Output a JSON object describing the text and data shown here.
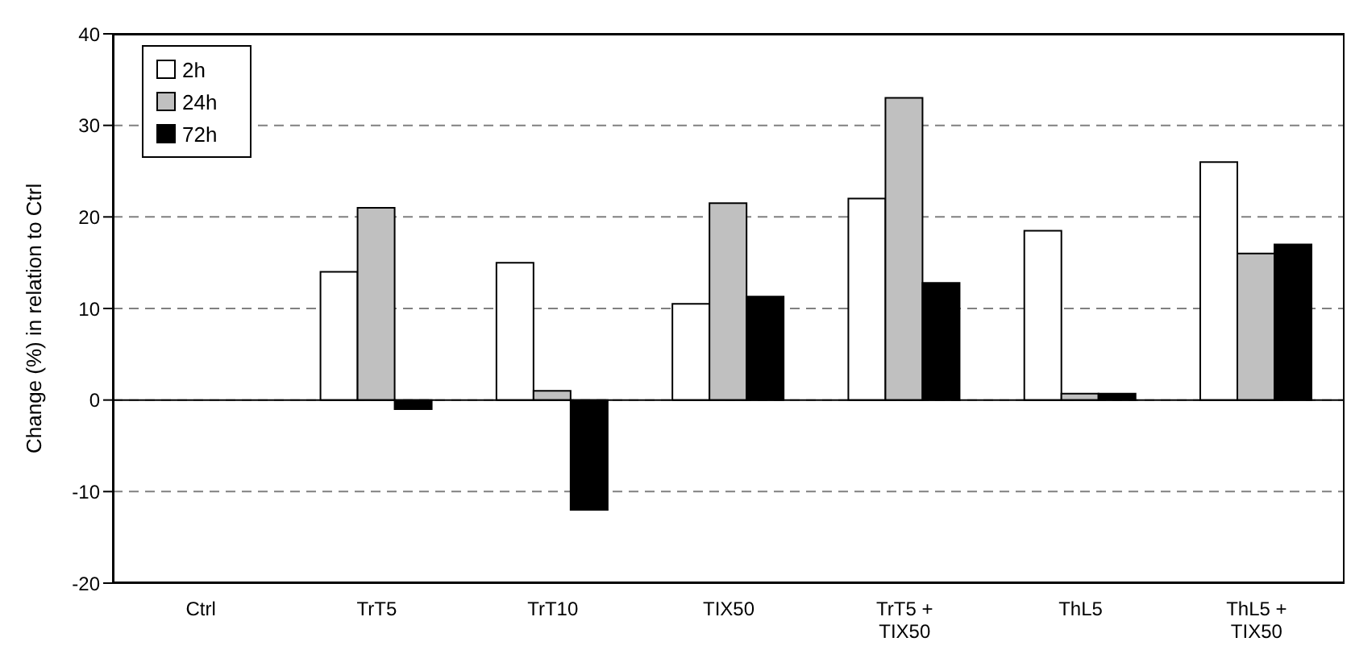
{
  "chart_data": {
    "type": "bar",
    "ylabel": "Change (%) in relation to Ctrl",
    "categories": [
      "Ctrl",
      "TrT5",
      "TrT10",
      "TIX50",
      "TrT5 + TIX50",
      "ThL5",
      "ThL5 + TIX50"
    ],
    "series": [
      {
        "name": "2h",
        "color": "#ffffff",
        "values": [
          0,
          14,
          15,
          10.5,
          22,
          18.5,
          26
        ]
      },
      {
        "name": "24h",
        "color": "#c0c0c0",
        "values": [
          0,
          21,
          1,
          21.5,
          33,
          0.7,
          16
        ]
      },
      {
        "name": "72h",
        "color": "#000000",
        "values": [
          0,
          -1,
          -12,
          11.3,
          12.8,
          0.7,
          17
        ]
      }
    ],
    "ylim": [
      -20,
      40
    ],
    "yticks": [
      -20,
      -10,
      0,
      10,
      20,
      30,
      40
    ],
    "grid": "y",
    "legend": "top left"
  }
}
